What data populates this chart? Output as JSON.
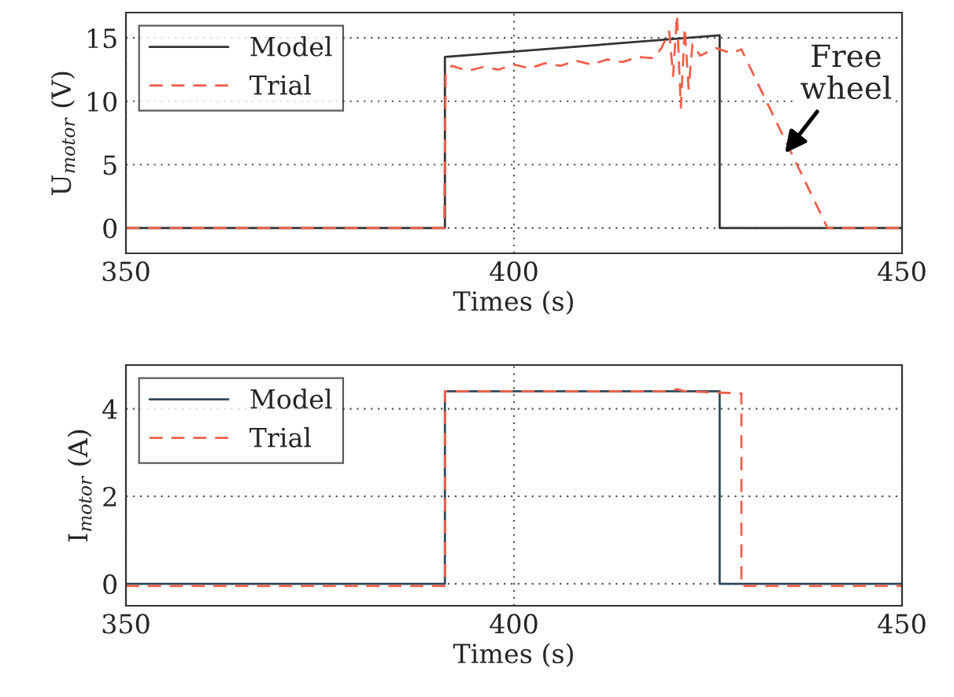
{
  "chart_data": [
    {
      "type": "line",
      "xlabel": "Times (s)",
      "ylabel": "U$_{motor}$ (V)",
      "xlim": [
        350,
        450
      ],
      "ylim": [
        -2,
        17
      ],
      "xticks": [
        350,
        400,
        450
      ],
      "yticks": [
        0,
        5,
        10,
        15
      ],
      "grid": true,
      "legend": "top left",
      "annotations": [
        {
          "text": "Free\nwheel",
          "x": 434.9,
          "y": 5.9
        }
      ],
      "series": [
        {
          "name": "Model",
          "color": "#333333",
          "line_style": "solid",
          "x": [
            350,
            391.1,
            391.1,
            426.5,
            426.5,
            450
          ],
          "values": [
            0,
            0,
            13.5,
            15.2,
            0,
            0
          ]
        },
        {
          "name": "Trial",
          "color": "#f0604a",
          "line_style": "dashed",
          "x": [
            350,
            391,
            391.2,
            392,
            394,
            396,
            398,
            400,
            402,
            404,
            406,
            408,
            410,
            412,
            414,
            416,
            418,
            419,
            420,
            420.5,
            421,
            421.5,
            422,
            422.5,
            423,
            424,
            426,
            428,
            429.3,
            440.4,
            450
          ],
          "values": [
            0,
            0,
            12.3,
            12.8,
            12.4,
            12.7,
            12.5,
            12.9,
            12.6,
            13.0,
            12.8,
            13.2,
            12.9,
            13.3,
            13.1,
            13.5,
            13.4,
            14.2,
            15.5,
            12,
            16.8,
            9.5,
            15.8,
            11,
            14.5,
            13.6,
            14.2,
            13.8,
            14.1,
            0,
            0
          ]
        }
      ]
    },
    {
      "type": "line",
      "xlabel": "Times (s)",
      "ylabel": "I$_{motor}$ (A)",
      "xlim": [
        350,
        450
      ],
      "ylim": [
        -0.5,
        5
      ],
      "xticks": [
        350,
        400,
        450
      ],
      "yticks": [
        0,
        2,
        4
      ],
      "grid": true,
      "legend": "top left",
      "series": [
        {
          "name": "Model",
          "color": "#2f4a5a",
          "line_style": "solid",
          "x": [
            350,
            391.1,
            391.1,
            426.5,
            426.5,
            450
          ],
          "values": [
            0,
            0,
            4.4,
            4.4,
            0,
            0
          ]
        },
        {
          "name": "Trial",
          "color": "#f0604a",
          "line_style": "dashed",
          "x": [
            350,
            391.1,
            391.1,
            420,
            421,
            422,
            429.3,
            429.3,
            450
          ],
          "values": [
            -0.05,
            -0.05,
            4.4,
            4.4,
            4.45,
            4.4,
            4.35,
            -0.05,
            -0.05
          ]
        }
      ]
    }
  ]
}
